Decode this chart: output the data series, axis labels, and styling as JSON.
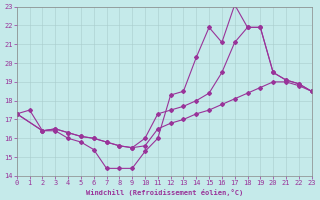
{
  "xlabel": "Windchill (Refroidissement éolien,°C)",
  "xlim": [
    0,
    23
  ],
  "ylim": [
    14,
    23
  ],
  "xticks": [
    0,
    1,
    2,
    3,
    4,
    5,
    6,
    7,
    8,
    9,
    10,
    11,
    12,
    13,
    14,
    15,
    16,
    17,
    18,
    19,
    20,
    21,
    22,
    23
  ],
  "yticks": [
    14,
    15,
    16,
    17,
    18,
    19,
    20,
    21,
    22,
    23
  ],
  "background_color": "#c5eaea",
  "line_color": "#993399",
  "grid_color": "#aacccc",
  "line1_x": [
    0,
    1,
    2,
    3,
    4,
    5,
    6,
    7,
    8,
    9,
    10,
    11,
    12,
    13,
    14,
    15,
    16,
    17,
    18,
    19,
    20,
    21,
    22,
    23
  ],
  "line1_y": [
    17.3,
    17.5,
    16.4,
    16.4,
    16.0,
    15.8,
    15.4,
    14.4,
    14.4,
    14.4,
    15.3,
    16.0,
    18.3,
    18.5,
    20.3,
    21.9,
    21.1,
    23.1,
    21.9,
    21.9,
    19.5,
    19.1,
    18.9,
    18.5
  ],
  "line2_x": [
    0,
    2,
    3,
    4,
    5,
    6,
    7,
    8,
    9,
    10,
    11,
    12,
    13,
    14,
    15,
    16,
    17,
    18,
    19,
    20,
    21,
    22,
    23
  ],
  "line2_y": [
    17.3,
    16.4,
    16.5,
    16.3,
    16.1,
    16.0,
    15.8,
    15.6,
    15.5,
    16.0,
    17.3,
    17.5,
    17.7,
    18.0,
    18.4,
    19.5,
    21.1,
    21.9,
    21.9,
    19.5,
    19.1,
    18.9,
    18.5
  ],
  "line3_x": [
    0,
    2,
    3,
    4,
    5,
    6,
    7,
    8,
    9,
    10,
    11,
    12,
    13,
    14,
    15,
    16,
    17,
    18,
    19,
    20,
    21,
    22,
    23
  ],
  "line3_y": [
    17.3,
    16.4,
    16.5,
    16.3,
    16.1,
    16.0,
    15.8,
    15.6,
    15.5,
    15.6,
    16.5,
    16.8,
    17.0,
    17.3,
    17.5,
    17.8,
    18.1,
    18.4,
    18.7,
    19.0,
    19.0,
    18.8,
    18.5
  ]
}
